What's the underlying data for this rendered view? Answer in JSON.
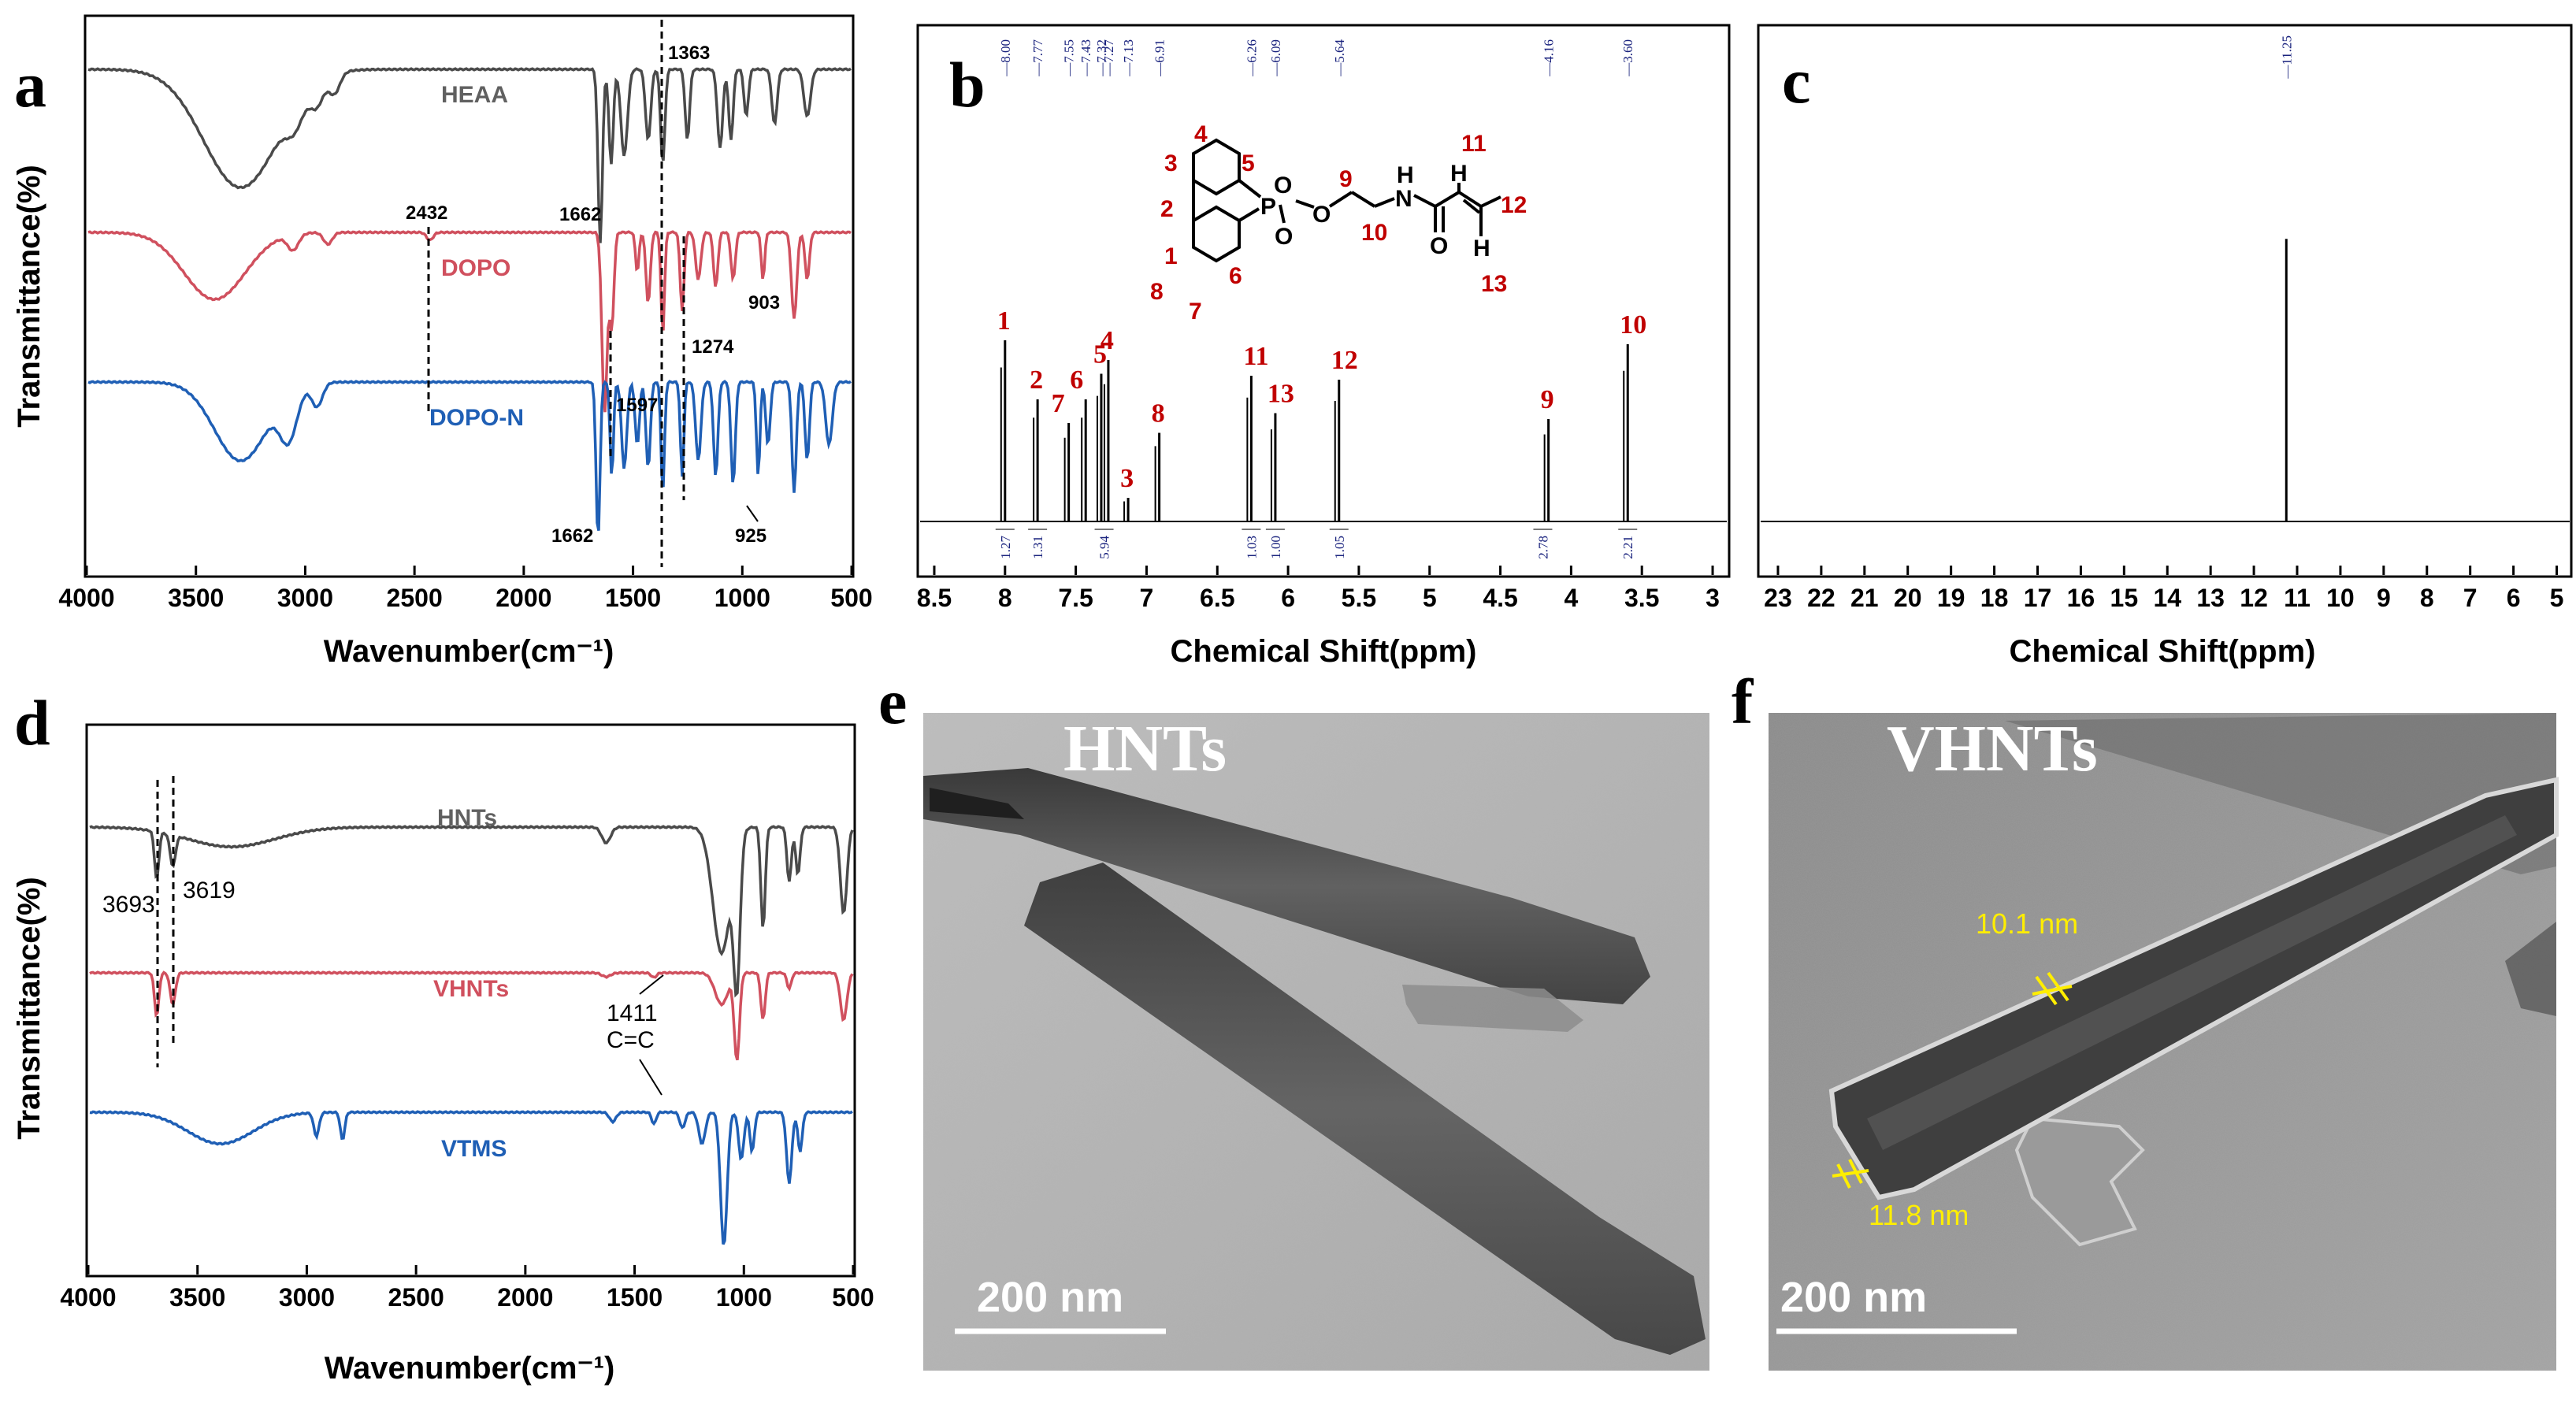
{
  "panel_labels": {
    "a": "a",
    "b": "b",
    "c": "c",
    "d": "d",
    "e": "e",
    "f": "f"
  },
  "chart_data": [
    {
      "id": "a",
      "type": "line",
      "xlabel": "Wavenumber(cm⁻¹)",
      "ylabel": "Transmittance(%)",
      "xlim": [
        4000,
        500
      ],
      "xticks": [
        4000,
        3500,
        3000,
        2500,
        2000,
        1500,
        1000,
        500
      ],
      "series": [
        {
          "name": "HEAA",
          "color": "#4a4a4a"
        },
        {
          "name": "DOPO",
          "color": "#d0505e"
        },
        {
          "name": "DOPO-N",
          "color": "#1f5fb5"
        }
      ],
      "annotations": [
        "1363",
        "1662",
        "2432",
        "903",
        "1274",
        "1597",
        "1662",
        "925"
      ],
      "dashed_lines": [
        2432,
        1597,
        1363,
        1274
      ]
    },
    {
      "id": "b",
      "type": "line",
      "xlabel": "Chemical Shift(ppm)",
      "xlim": [
        8.6,
        2.9
      ],
      "xticks": [
        8.5,
        8.0,
        7.5,
        7.0,
        6.5,
        6.0,
        5.5,
        5.0,
        4.5,
        4.0,
        3.5,
        3.0
      ],
      "peaks": [
        {
          "ppm": 8.0,
          "height": 0.92,
          "label": "1"
        },
        {
          "ppm": 7.77,
          "height": 0.62,
          "label": "2"
        },
        {
          "ppm": 7.55,
          "height": 0.5,
          "label": "7"
        },
        {
          "ppm": 7.43,
          "height": 0.62,
          "label": "6"
        },
        {
          "ppm": 7.32,
          "height": 0.75,
          "label": "5"
        },
        {
          "ppm": 7.27,
          "height": 0.82,
          "label": "4"
        },
        {
          "ppm": 7.13,
          "height": 0.12,
          "label": "3"
        },
        {
          "ppm": 6.91,
          "height": 0.45,
          "label": "8"
        },
        {
          "ppm": 6.26,
          "height": 0.74,
          "label": "11"
        },
        {
          "ppm": 6.09,
          "height": 0.55,
          "label": "13"
        },
        {
          "ppm": 5.64,
          "height": 0.72,
          "label": "12"
        },
        {
          "ppm": 4.16,
          "height": 0.52,
          "label": "9"
        },
        {
          "ppm": 3.6,
          "height": 0.9,
          "label": "10"
        }
      ],
      "top_labels": [
        "8.00",
        "7.77",
        "7.55",
        "7.43",
        "7.32",
        "7.27",
        "7.13",
        "6.91",
        "6.26",
        "6.09",
        "5.64",
        "4.16",
        "3.60"
      ],
      "integrals": [
        "1.27",
        "1.31",
        "5.94",
        "1.03",
        "1.00",
        "1.05",
        "2.78",
        "2.21"
      ]
    },
    {
      "id": "c",
      "type": "line",
      "xlabel": "Chemical Shift(ppm)",
      "xlim": [
        23.4,
        4.7
      ],
      "xticks": [
        23,
        22,
        21,
        20,
        19,
        18,
        17,
        16,
        15,
        14,
        13,
        12,
        11,
        10,
        9,
        8,
        7,
        6,
        5
      ],
      "peaks": [
        {
          "ppm": 11.25,
          "height": 0.78
        }
      ],
      "top_labels": [
        "11.25"
      ]
    },
    {
      "id": "d",
      "type": "line",
      "xlabel": "Wavenumber(cm⁻¹)",
      "ylabel": "Transmittance(%)",
      "xlim": [
        4000,
        500
      ],
      "xticks": [
        4000,
        3500,
        3000,
        2500,
        2000,
        1500,
        1000,
        500
      ],
      "series": [
        {
          "name": "HNTs",
          "color": "#4a4a4a"
        },
        {
          "name": "VHNTs",
          "color": "#d0505e"
        },
        {
          "name": "VTMS",
          "color": "#1f5fb5"
        }
      ],
      "annotations": [
        "3693",
        "3619",
        "1411",
        "C=C"
      ],
      "dashed_lines": [
        3693,
        3619
      ]
    }
  ],
  "structure": {
    "atoms": [
      "P",
      "O",
      "O",
      "O",
      "H",
      "N",
      "O",
      "H",
      "H"
    ],
    "numbers": [
      "1",
      "2",
      "3",
      "4",
      "5",
      "6",
      "7",
      "8",
      "9",
      "10",
      "11",
      "12",
      "13"
    ]
  },
  "tem": [
    {
      "id": "e",
      "title": "HNTs",
      "scale_bar": "200 nm"
    },
    {
      "id": "f",
      "title": "VHNTs",
      "scale_bar": "200 nm",
      "measurements": [
        "10.1 nm",
        "11.8 nm"
      ]
    }
  ]
}
